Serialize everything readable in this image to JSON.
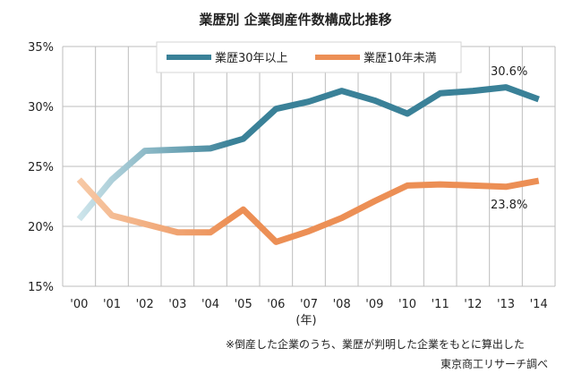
{
  "chart_data": {
    "type": "line",
    "title": "業歴別 企業倒産件数構成比推移",
    "categories": [
      "'00",
      "'01",
      "'02",
      "'03",
      "'04",
      "'05",
      "'06",
      "'07",
      "'08",
      "'09",
      "'10",
      "'11",
      "'12",
      "'13",
      "'14"
    ],
    "x_unit": "(年)",
    "ylim": [
      15,
      35
    ],
    "yticks": [
      "15%",
      "20%",
      "25%",
      "30%",
      "35%"
    ],
    "grid": true,
    "legend_position": "top",
    "series": [
      {
        "name": "業歴30年以上",
        "color": "#3a8198",
        "values": [
          20.6,
          23.9,
          26.3,
          26.4,
          26.5,
          27.3,
          29.8,
          30.4,
          31.3,
          30.5,
          29.4,
          31.1,
          31.3,
          31.6,
          30.6
        ],
        "end_label": "30.6%"
      },
      {
        "name": "業歴10年未満",
        "color": "#ec8f55",
        "values": [
          23.9,
          20.9,
          20.2,
          19.5,
          19.5,
          21.4,
          18.7,
          19.6,
          20.7,
          22.1,
          23.4,
          23.5,
          23.4,
          23.3,
          23.8
        ],
        "end_label": "23.8%"
      }
    ]
  },
  "notes": {
    "footnote": "※倒産した企業のうち、業歴が判明した企業をもとに算出した",
    "source": "東京商工リサーチ調べ"
  }
}
